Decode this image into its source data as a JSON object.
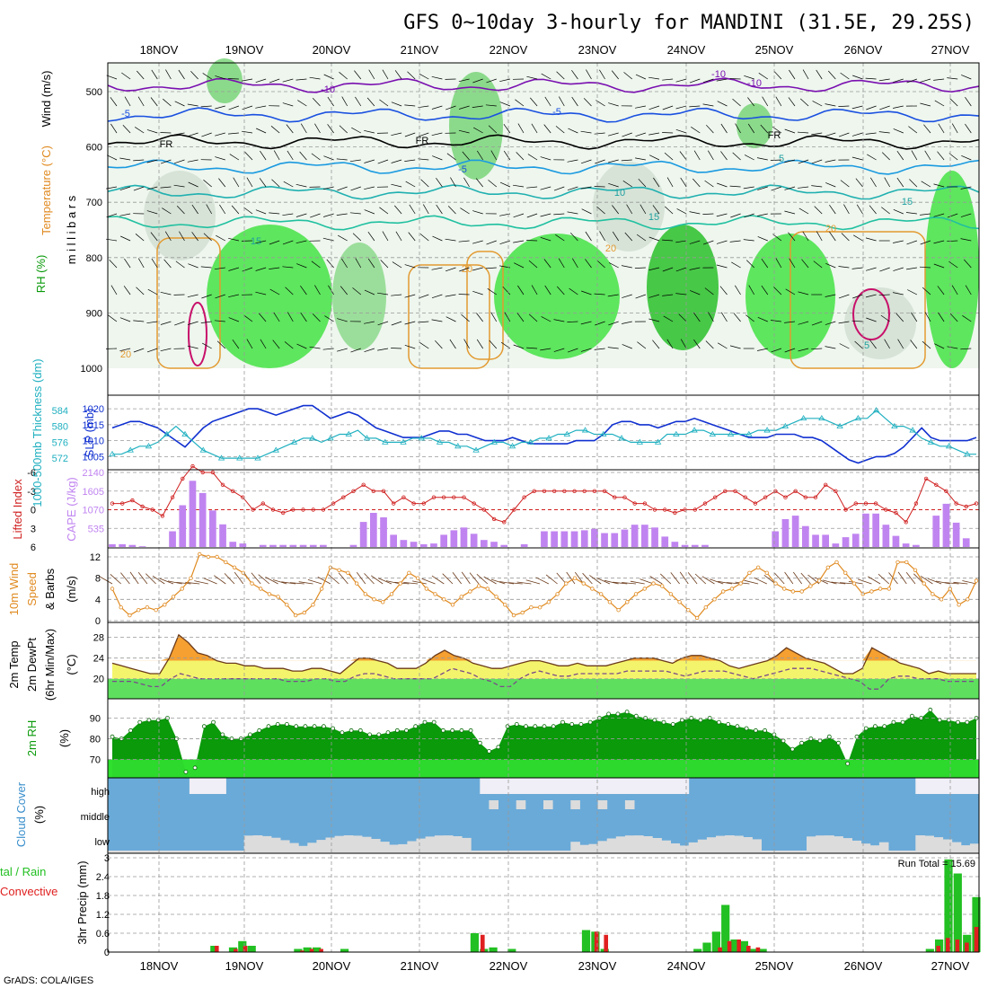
{
  "title": "GFS 0~10day 3-hourly for MANDINI (31.5E, 29.25S)",
  "credit": "GrADS: COLA/IGES",
  "dates": [
    "18NOV",
    "19NOV",
    "20NOV",
    "21NOV",
    "22NOV",
    "23NOV",
    "24NOV",
    "25NOV",
    "26NOV",
    "27NOV"
  ],
  "colors": {
    "cape": "#c084f0",
    "lifted": "#d02020",
    "slp": "#1030d0",
    "thickness": "#20b0c0",
    "wind": "#e08a20",
    "temp_warm": "#f5a030",
    "temp_yellow": "#f4f46c",
    "temp_green": "#5ee05e",
    "rh_dark": "#0a9a0a",
    "rh_light": "#30e030",
    "cloud_blue": "#6aaad8",
    "cloud_grey": "#dcdcdc",
    "precip_total": "#22c022",
    "precip_conv": "#e02020"
  },
  "panels": {
    "upper": {
      "ylabel": "m i l l i b a r s",
      "legend_rh": "RH (%)",
      "legend_temp": "Temperature (°C)",
      "legend_wind": "Wind (m/s)",
      "levels": [
        "500",
        "600",
        "700",
        "800",
        "900",
        "1000"
      ],
      "contour_labels": [
        "-10",
        "-10",
        "-5",
        "-5",
        "FR",
        "FR",
        "FR",
        "-5",
        "5",
        "10",
        "15",
        "15",
        "20",
        "20",
        "20",
        "20",
        "15",
        "-10",
        "5"
      ]
    },
    "slp": {
      "label_thickness": "1000-500mb Thickness (dm)",
      "label_slp": "SLP (mb)",
      "thickness_ticks": [
        "584",
        "580",
        "576",
        "572"
      ],
      "slp_ticks": [
        "1020",
        "1015",
        "1010",
        "1005"
      ]
    },
    "cape": {
      "label_li": "Lifted Index",
      "label_cape": "CAPE (J/kg)",
      "li_ticks": [
        "-6",
        "-3",
        "0",
        "3",
        "6"
      ],
      "cape_ticks": [
        "2140",
        "1605",
        "1070",
        "535"
      ]
    },
    "wind10": {
      "label1": "10m Wind",
      "label2": "Speed",
      "label3": "& Barbs",
      "unit": "(m/s)",
      "ticks": [
        "12",
        "8",
        "4",
        "0"
      ]
    },
    "temp2m": {
      "label1": "2m Temp",
      "label2": "2m DewPt",
      "label3": "(6hr Min/Max)",
      "unit": "(°C)",
      "ticks": [
        "28",
        "24",
        "20"
      ]
    },
    "rh2m": {
      "label": "2m RH",
      "unit": "(%)",
      "ticks": [
        "90",
        "80",
        "70"
      ]
    },
    "cloud": {
      "label": "Cloud Cover",
      "unit": "(%)",
      "levels": [
        "high",
        "middle",
        "low"
      ]
    },
    "precip": {
      "label1": "tal / Rain",
      "label2": "Convective",
      "ylabel": "3hr Precip (mm)",
      "ticks": [
        "3",
        "2.4",
        "1.8",
        "1.2",
        "0.6",
        "0"
      ],
      "run_total": "Run Total = 15.69"
    }
  },
  "chart_data": {
    "type": "line",
    "x_unit": "3-hourly steps from 17NOV 12Z (date labels mark 00Z)",
    "series": [
      {
        "name": "SLP (mb)",
        "values": [
          1014,
          1015,
          1016,
          1016,
          1015,
          1014,
          1012,
          1010,
          1008,
          1011,
          1014,
          1016,
          1017,
          1018,
          1019,
          1020,
          1020,
          1019,
          1018,
          1019,
          1020,
          1021,
          1021,
          1019,
          1017,
          1018,
          1019,
          1018,
          1016,
          1014,
          1013,
          1012,
          1011,
          1011,
          1011,
          1012,
          1013,
          1013,
          1012,
          1012,
          1011,
          1010,
          1010,
          1010,
          1011,
          1010,
          1009,
          1009,
          1009,
          1009,
          1009,
          1010,
          1010,
          1010,
          1012,
          1015,
          1016,
          1016,
          1015,
          1015,
          1014,
          1015,
          1016,
          1016,
          1017,
          1016,
          1015,
          1014,
          1013,
          1012,
          1011,
          1011,
          1011,
          1012,
          1012,
          1012,
          1011,
          1011,
          1010,
          1008,
          1006,
          1004,
          1003,
          1004,
          1005,
          1005,
          1006,
          1008,
          1011,
          1014,
          1011,
          1010,
          1010,
          1010,
          1010,
          1011
        ]
      },
      {
        "name": "1000-500mb Thickness (dm)",
        "values": [
          573,
          573,
          574,
          575,
          575,
          576,
          578,
          580,
          578,
          576,
          574,
          573,
          572,
          572,
          572,
          572,
          572,
          573,
          574,
          575,
          576,
          577,
          577,
          576,
          577,
          578,
          578,
          579,
          577,
          577,
          576,
          576,
          576,
          577,
          577,
          577,
          576,
          576,
          575,
          575,
          574,
          575,
          576,
          576,
          575,
          576,
          576,
          577,
          577,
          578,
          578,
          579,
          579,
          578,
          578,
          578,
          577,
          576,
          576,
          576,
          576,
          578,
          578,
          578,
          579,
          579,
          578,
          578,
          578,
          578,
          578,
          579,
          579,
          579,
          580,
          581,
          582,
          582,
          582,
          581,
          580,
          581,
          582,
          582,
          584,
          582,
          580,
          580,
          579,
          577,
          576,
          575,
          575,
          574,
          573,
          573
        ]
      },
      {
        "name": "Lifted Index",
        "values": [
          -1,
          -1,
          -1.5,
          -0.5,
          0,
          1,
          -2,
          -5,
          -7,
          -6,
          -6,
          -4,
          -3,
          -2,
          0,
          -1,
          0,
          0.5,
          0,
          0,
          0,
          0,
          -1,
          -2,
          -3,
          -4,
          -3,
          -3,
          -1,
          -2,
          -1,
          -1,
          -2,
          -2,
          -2,
          -2,
          -1,
          0,
          1.5,
          2,
          0,
          -2,
          -3,
          -3,
          -3,
          -3,
          -3,
          -3,
          -3,
          -3,
          -2,
          -2,
          -1,
          -1,
          0,
          0,
          0.5,
          0,
          0,
          -1,
          -2,
          -3,
          -3,
          -2,
          -1,
          -2,
          -3,
          -2,
          -3,
          -2,
          -2,
          -4,
          -3,
          0,
          -1,
          -1,
          -1,
          0,
          0.5,
          2,
          -1,
          -5,
          -4,
          -3,
          -1,
          -0.5,
          -1
        ]
      },
      {
        "name": "CAPE (J/kg)",
        "values": [
          80,
          80,
          60,
          20,
          0,
          0,
          450,
          1200,
          1900,
          1550,
          1050,
          650,
          150,
          100,
          0,
          60,
          60,
          60,
          60,
          60,
          60,
          60,
          0,
          0,
          60,
          720,
          980,
          850,
          350,
          200,
          150,
          80,
          100,
          350,
          480,
          560,
          380,
          200,
          150,
          60,
          0,
          80,
          0,
          450,
          450,
          450,
          450,
          480,
          520,
          400,
          400,
          500,
          640,
          640,
          560,
          300,
          150,
          60,
          60,
          60,
          0,
          0,
          0,
          0,
          0,
          0,
          450,
          800,
          900,
          600,
          350,
          350,
          100,
          280,
          380,
          960,
          960,
          640,
          320,
          100,
          60,
          0,
          900,
          1240,
          700,
          250,
          0
        ]
      },
      {
        "name": "10m Wind Speed (m/s)",
        "values": [
          6,
          2.5,
          1,
          2,
          2.5,
          2,
          3,
          4.5,
          6,
          8,
          12.5,
          12,
          12,
          11,
          10,
          9,
          7,
          6,
          5,
          4.5,
          3,
          1,
          1.5,
          3,
          6,
          10,
          9.5,
          9,
          7,
          5,
          4,
          3.5,
          5,
          7,
          9,
          8,
          6,
          5,
          4,
          3,
          4.5,
          5.5,
          6.5,
          6,
          4.5,
          3,
          1,
          1.5,
          2.5,
          2.5,
          3.5,
          5,
          7,
          8,
          7,
          6,
          5,
          3.5,
          2,
          3.5,
          5,
          6,
          7,
          6.5,
          5,
          3.5,
          2,
          0.5,
          2.5,
          4,
          5.5,
          6,
          7,
          9,
          10,
          9,
          7,
          6,
          5.5,
          5.5,
          6.5,
          7.5,
          10,
          11,
          9,
          7,
          5,
          5.5,
          6,
          6,
          11,
          11,
          9.5,
          7,
          5,
          4,
          6,
          3,
          4,
          7.5
        ]
      },
      {
        "name": "2m Temp (°C)",
        "values": [
          23,
          22.5,
          22,
          21.5,
          21,
          21,
          24,
          28.5,
          27,
          25,
          24.5,
          23.5,
          23,
          23,
          22.5,
          22.5,
          22,
          22,
          22,
          21.5,
          21.5,
          22,
          22,
          21.5,
          21,
          22.5,
          24,
          24,
          23.5,
          23,
          22,
          22,
          22,
          23,
          24.5,
          25.5,
          24.5,
          24,
          23,
          22.5,
          22,
          22,
          22.5,
          23,
          23.5,
          23.5,
          23,
          22.5,
          22.5,
          23,
          22.5,
          22.5,
          22.5,
          23,
          23.5,
          24,
          24,
          24,
          23.5,
          23,
          24,
          24.5,
          24.5,
          24,
          23.5,
          22.5,
          22,
          22.5,
          23,
          23.5,
          24.5,
          26,
          25,
          24,
          23.5,
          23,
          22,
          21,
          21,
          22,
          26,
          25,
          24,
          23,
          22.5,
          22,
          21,
          21.5,
          21,
          21,
          21,
          21
        ]
      },
      {
        "name": "2m DewPt (°C)",
        "values": [
          19.5,
          19.5,
          19.5,
          19,
          18.5,
          18.5,
          20,
          21,
          20.5,
          20,
          20,
          20,
          20,
          20,
          20,
          20,
          20,
          20,
          19.5,
          19.5,
          19.5,
          20,
          20,
          19.5,
          19.5,
          20.5,
          21,
          21,
          20.5,
          20,
          20,
          20,
          20,
          20,
          21,
          22,
          21.5,
          21,
          20,
          19.5,
          18.5,
          18.5,
          20,
          21,
          21.5,
          21,
          20.5,
          20.5,
          21,
          21,
          21,
          21,
          21,
          21.5,
          21.5,
          21.5,
          21.5,
          21.5,
          21,
          20.5,
          21,
          21.5,
          21.5,
          21.5,
          21,
          20.5,
          20,
          20.5,
          21,
          21.5,
          22,
          22,
          22,
          21.5,
          21,
          20.5,
          20,
          19.5,
          18,
          18,
          20,
          20.5,
          20.5,
          20,
          20,
          20,
          19.5,
          19.5,
          19.5,
          19.5
        ]
      },
      {
        "name": "2m RH (%)",
        "values": [
          81,
          80,
          84,
          88,
          89,
          89,
          90,
          80,
          64,
          66,
          86,
          88,
          82,
          80,
          80,
          82,
          84,
          86,
          87,
          87,
          86,
          86,
          86,
          86,
          85,
          83,
          84,
          84,
          82,
          82,
          83,
          84,
          84,
          86,
          88,
          88,
          84,
          84,
          84,
          84,
          78,
          74,
          76,
          86,
          87,
          86,
          86,
          86,
          86,
          88,
          87,
          87,
          88,
          90,
          92,
          92,
          93,
          91,
          90,
          89,
          88,
          87,
          89,
          90,
          89,
          90,
          88,
          87,
          86,
          85,
          84,
          84,
          82,
          79,
          75,
          78,
          80,
          79,
          81,
          78,
          68,
          81,
          85,
          86,
          86,
          88,
          88,
          91,
          90,
          94,
          89,
          89,
          88,
          88,
          90
        ]
      },
      {
        "name": "3hr Precip total (mm)",
        "values": [
          0,
          0,
          0,
          0,
          0,
          0,
          0,
          0,
          0,
          0,
          0,
          0.2,
          0,
          0.15,
          0.35,
          0.2,
          0,
          0,
          0,
          0,
          0.1,
          0.15,
          0.15,
          0,
          0,
          0.1,
          0,
          0,
          0,
          0,
          0,
          0,
          0,
          0,
          0,
          0,
          0,
          0,
          0,
          0.6,
          0.1,
          0.15,
          0,
          0.1,
          0,
          0,
          0,
          0,
          0,
          0,
          0,
          0.7,
          0.65,
          0.1,
          0,
          0,
          0,
          0,
          0,
          0,
          0,
          0,
          0,
          0.1,
          0.3,
          0.65,
          1.5,
          0.4,
          0.35,
          0.1,
          0.1,
          0,
          0,
          0,
          0,
          0,
          0,
          0,
          0,
          0,
          0,
          0,
          0,
          0,
          0,
          0,
          0,
          0,
          0.1,
          0.4,
          2.95,
          2.5,
          0.55,
          1.75
        ]
      },
      {
        "name": "3hr Precip convective (mm)",
        "values": [
          0,
          0,
          0,
          0,
          0,
          0,
          0,
          0,
          0,
          0,
          0,
          0.2,
          0,
          0.1,
          0.2,
          0,
          0,
          0,
          0,
          0,
          0.05,
          0.1,
          0.1,
          0,
          0,
          0,
          0,
          0,
          0,
          0,
          0,
          0,
          0,
          0,
          0,
          0,
          0,
          0,
          0,
          0.55,
          0,
          0,
          0,
          0,
          0,
          0,
          0,
          0,
          0,
          0,
          0,
          0.65,
          0.55,
          0,
          0,
          0,
          0,
          0,
          0,
          0,
          0,
          0,
          0,
          0,
          0.15,
          0.35,
          0.4,
          0.2,
          0.15,
          0,
          0,
          0,
          0,
          0,
          0,
          0,
          0,
          0,
          0,
          0,
          0,
          0,
          0,
          0,
          0,
          0,
          0,
          0.2,
          0.45,
          0.4,
          0.3,
          0.8
        ]
      }
    ]
  }
}
